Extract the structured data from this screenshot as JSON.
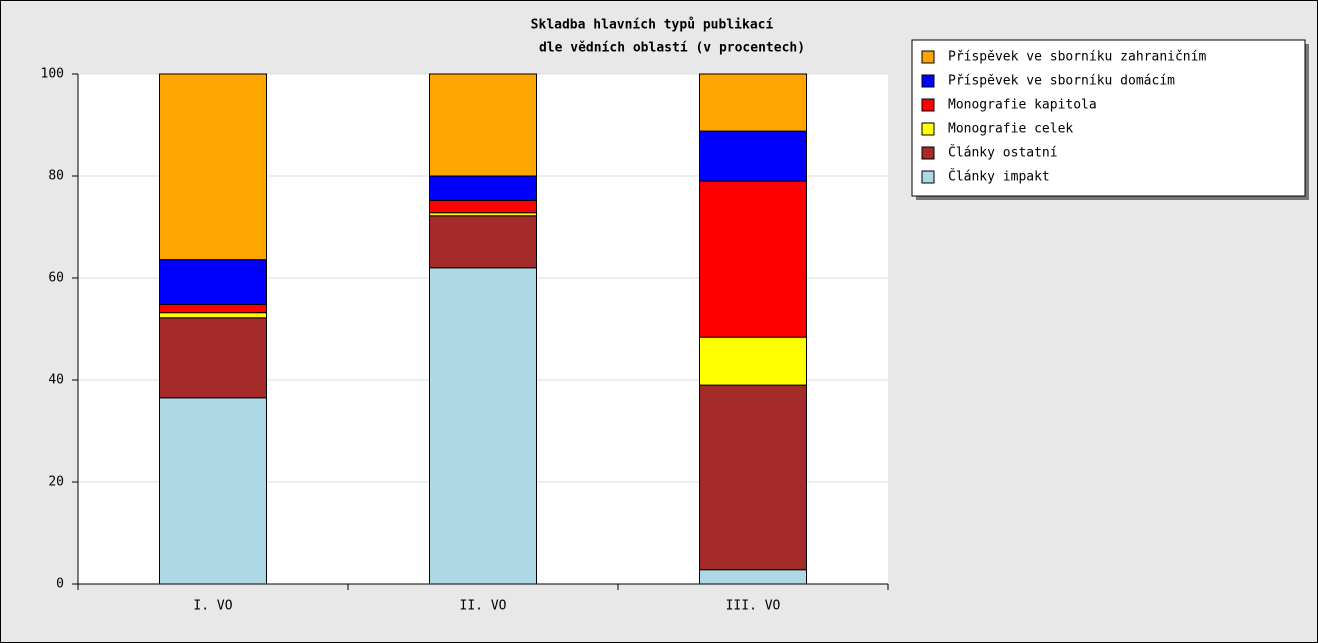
{
  "chart_data": {
    "type": "stacked_bar",
    "title": [
      "Skladba hlavních typů publikací",
      "dle vědních oblastí (v procentech)"
    ],
    "categories": [
      "I. VO",
      "II. VO",
      "III. VO"
    ],
    "series": [
      {
        "name": "Články impakt",
        "color": "#add8e6",
        "values": [
          36.5,
          62,
          2.8
        ]
      },
      {
        "name": "Články ostatní",
        "color": "#a52a2a",
        "values": [
          15.7,
          10.2,
          36.2
        ]
      },
      {
        "name": "Monografie celek",
        "color": "#ffff00",
        "values": [
          1.0,
          0.6,
          9.4
        ]
      },
      {
        "name": "Monografie kapitola",
        "color": "#ff0000",
        "values": [
          1.6,
          2.4,
          30.6
        ]
      },
      {
        "name": "Příspěvek ve sborníku domácím",
        "color": "#0000ff",
        "values": [
          8.8,
          4.8,
          9.8
        ]
      },
      {
        "name": "Příspěvek ve sborníku zahraničním",
        "color": "#ffa500",
        "values": [
          36.4,
          20,
          11.2
        ]
      }
    ],
    "ylim": [
      0,
      100
    ],
    "yticks": [
      0,
      20,
      40,
      60,
      80,
      100
    ],
    "grid": true,
    "legend": "top-right"
  }
}
